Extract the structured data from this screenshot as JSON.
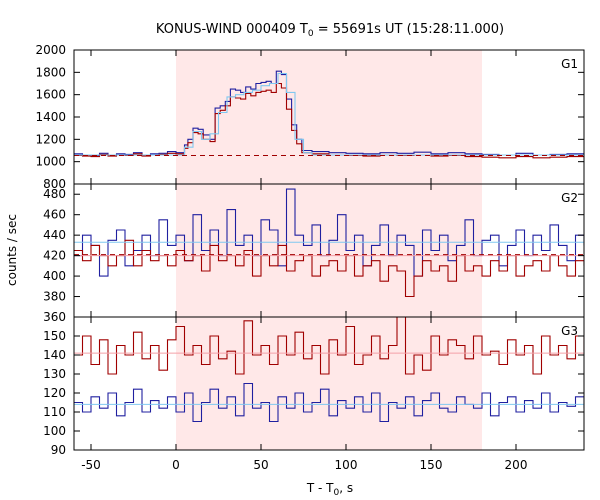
{
  "chart_data": {
    "type": "line",
    "title_main": "KONUS-WIND 000409 T",
    "title_sub": "0",
    "title_rest": " = 55691s UT (15:28:11.000)",
    "xlabel_main": "T - T",
    "xlabel_sub": "0",
    "xlabel_rest": ", s",
    "ylabel": "counts / sec",
    "xlim": [
      -60,
      240
    ],
    "x_ticks": [
      -50,
      0,
      50,
      100,
      150,
      200
    ],
    "shaded_interval": [
      0,
      180
    ],
    "colors": {
      "shade": "#ffe8e8",
      "dark_red": "#a00000",
      "blue": "#2020a0",
      "light_blue": "#80c8f0",
      "pink": "#f4a0a8"
    },
    "panels": [
      {
        "label": "G1",
        "ylim": [
          800,
          2000
        ],
        "y_ticks": [
          800,
          1000,
          1200,
          1400,
          1600,
          1800,
          2000
        ],
        "series": [
          {
            "color": "#2020a0",
            "style": "step",
            "x": [
              -60,
              -55,
              -50,
              -45,
              -40,
              -35,
              -30,
              -25,
              -20,
              -15,
              -10,
              -5,
              0,
              5,
              7,
              10,
              13,
              16,
              20,
              23,
              26,
              29,
              32,
              35,
              38,
              41,
              44,
              47,
              50,
              53,
              56,
              59,
              62,
              65,
              68,
              71,
              74,
              80,
              90,
              100,
              110,
              120,
              130,
              140,
              150,
              160,
              170,
              180,
              190,
              200,
              210,
              220,
              230,
              240
            ],
            "y": [
              1070,
              1060,
              1050,
              1075,
              1060,
              1070,
              1065,
              1080,
              1060,
              1070,
              1075,
              1090,
              1080,
              1150,
              1200,
              1300,
              1290,
              1240,
              1200,
              1480,
              1500,
              1540,
              1650,
              1640,
              1620,
              1670,
              1650,
              1700,
              1710,
              1720,
              1700,
              1810,
              1780,
              1560,
              1330,
              1200,
              1100,
              1090,
              1080,
              1075,
              1070,
              1080,
              1075,
              1085,
              1070,
              1080,
              1070,
              1065,
              1060,
              1075,
              1060,
              1065,
              1070,
              1065
            ]
          },
          {
            "color": "#a00000",
            "style": "step",
            "x": [
              -60,
              -55,
              -50,
              -45,
              -40,
              -35,
              -30,
              -25,
              -20,
              -15,
              -10,
              -5,
              0,
              5,
              7,
              10,
              13,
              16,
              20,
              23,
              26,
              29,
              32,
              35,
              38,
              41,
              44,
              47,
              50,
              53,
              56,
              59,
              62,
              65,
              68,
              71,
              74,
              80,
              90,
              100,
              110,
              120,
              130,
              140,
              150,
              160,
              170,
              180,
              190,
              200,
              210,
              220,
              230,
              240
            ],
            "y": [
              1055,
              1050,
              1045,
              1065,
              1050,
              1060,
              1055,
              1070,
              1050,
              1060,
              1065,
              1075,
              1070,
              1120,
              1170,
              1260,
              1250,
              1200,
              1180,
              1430,
              1460,
              1500,
              1580,
              1570,
              1560,
              1610,
              1590,
              1620,
              1630,
              1640,
              1620,
              1700,
              1660,
              1470,
              1280,
              1160,
              1080,
              1070,
              1060,
              1055,
              1050,
              1060,
              1055,
              1060,
              1050,
              1055,
              1045,
              1040,
              1035,
              1045,
              1035,
              1040,
              1045,
              1040
            ]
          },
          {
            "color": "#80c8f0",
            "style": "step",
            "x": [
              -60,
              0,
              5,
              10,
              15,
              20,
              25,
              30,
              35,
              40,
              45,
              50,
              55,
              60,
              65,
              70,
              75,
              80,
              240
            ],
            "y": [
              1060,
              1060,
              1130,
              1270,
              1200,
              1250,
              1440,
              1580,
              1600,
              1620,
              1640,
              1680,
              1700,
              1790,
              1620,
              1200,
              1080,
              1060,
              1060
            ]
          },
          {
            "color": "#a00000",
            "style": "dashed",
            "x": [
              -60,
              240
            ],
            "y": [
              1055,
              1055
            ]
          }
        ]
      },
      {
        "label": "G2",
        "ylim": [
          360,
          490
        ],
        "y_ticks": [
          360,
          380,
          400,
          420,
          440,
          460,
          480
        ],
        "series": [
          {
            "color": "#2020a0",
            "style": "step",
            "x": [
              -60,
              -55,
              -50,
              -45,
              -40,
              -35,
              -30,
              -25,
              -20,
              -15,
              -10,
              -5,
              0,
              5,
              10,
              15,
              20,
              25,
              30,
              35,
              40,
              45,
              50,
              55,
              60,
              65,
              70,
              75,
              80,
              85,
              90,
              95,
              100,
              105,
              110,
              115,
              120,
              125,
              130,
              135,
              140,
              145,
              150,
              155,
              160,
              165,
              170,
              175,
              180,
              185,
              190,
              195,
              200,
              205,
              210,
              215,
              220,
              225,
              230,
              235,
              240
            ],
            "y": [
              420,
              440,
              430,
              400,
              435,
              445,
              410,
              425,
              440,
              420,
              455,
              430,
              440,
              415,
              460,
              425,
              445,
              420,
              465,
              430,
              440,
              420,
              455,
              445,
              410,
              485,
              440,
              430,
              450,
              420,
              435,
              460,
              425,
              440,
              410,
              430,
              450,
              420,
              440,
              430,
              400,
              445,
              425,
              440,
              415,
              430,
              455,
              420,
              435,
              440,
              410,
              430,
              445,
              420,
              440,
              425,
              450,
              430,
              415,
              440,
              430
            ]
          },
          {
            "color": "#a00000",
            "style": "step",
            "x": [
              -60,
              -55,
              -50,
              -45,
              -40,
              -35,
              -30,
              -25,
              -20,
              -15,
              -10,
              -5,
              0,
              5,
              10,
              15,
              20,
              25,
              30,
              35,
              40,
              45,
              50,
              55,
              60,
              65,
              70,
              75,
              80,
              85,
              90,
              95,
              100,
              105,
              110,
              115,
              120,
              125,
              130,
              135,
              140,
              145,
              150,
              155,
              160,
              165,
              170,
              175,
              180,
              185,
              190,
              195,
              200,
              205,
              210,
              215,
              220,
              225,
              230,
              235,
              240
            ],
            "y": [
              425,
              415,
              430,
              420,
              410,
              420,
              435,
              410,
              425,
              415,
              420,
              410,
              425,
              415,
              420,
              405,
              430,
              415,
              420,
              410,
              425,
              400,
              420,
              410,
              430,
              405,
              415,
              420,
              400,
              410,
              415,
              405,
              420,
              400,
              410,
              415,
              395,
              410,
              405,
              380,
              400,
              415,
              405,
              410,
              395,
              420,
              405,
              410,
              400,
              415,
              405,
              420,
              400,
              410,
              415,
              405,
              420,
              410,
              400,
              415,
              410
            ]
          },
          {
            "color": "#80c8f0",
            "style": "flat",
            "x": [
              -60,
              240
            ],
            "y": [
              433,
              433
            ]
          },
          {
            "color": "#f4a0a8",
            "style": "flat",
            "x": [
              -60,
              240
            ],
            "y": [
              420,
              420
            ]
          },
          {
            "color": "#a00000",
            "style": "dashed",
            "x": [
              -60,
              240
            ],
            "y": [
              421,
              421
            ]
          }
        ]
      },
      {
        "label": "G3",
        "ylim": [
          90,
          160
        ],
        "y_ticks": [
          90,
          100,
          110,
          120,
          130,
          140,
          150
        ],
        "series": [
          {
            "color": "#a00000",
            "style": "step",
            "x": [
              -60,
              -55,
              -50,
              -45,
              -40,
              -35,
              -30,
              -25,
              -20,
              -15,
              -10,
              -5,
              0,
              5,
              10,
              15,
              20,
              25,
              30,
              35,
              40,
              45,
              50,
              55,
              60,
              65,
              70,
              75,
              80,
              85,
              90,
              95,
              100,
              105,
              110,
              115,
              120,
              125,
              130,
              135,
              140,
              145,
              150,
              155,
              160,
              165,
              170,
              175,
              180,
              185,
              190,
              195,
              200,
              205,
              210,
              215,
              220,
              225,
              230,
              235,
              240
            ],
            "y": [
              140,
              150,
              135,
              148,
              130,
              145,
              140,
              152,
              138,
              145,
              132,
              148,
              155,
              140,
              145,
              135,
              150,
              138,
              142,
              130,
              158,
              140,
              145,
              135,
              150,
              140,
              152,
              138,
              145,
              130,
              148,
              140,
              155,
              135,
              140,
              150,
              138,
              145,
              160,
              130,
              140,
              132,
              150,
              140,
              148,
              145,
              138,
              150,
              140,
              142,
              135,
              148,
              140,
              145,
              130,
              150,
              140,
              145,
              138,
              150,
              142
            ]
          },
          {
            "color": "#2020a0",
            "style": "step",
            "x": [
              -60,
              -55,
              -50,
              -45,
              -40,
              -35,
              -30,
              -25,
              -20,
              -15,
              -10,
              -5,
              0,
              5,
              10,
              15,
              20,
              25,
              30,
              35,
              40,
              45,
              50,
              55,
              60,
              65,
              70,
              75,
              80,
              85,
              90,
              95,
              100,
              105,
              110,
              115,
              120,
              125,
              130,
              135,
              140,
              145,
              150,
              155,
              160,
              165,
              170,
              175,
              180,
              185,
              190,
              195,
              200,
              205,
              210,
              215,
              220,
              225,
              230,
              235,
              240
            ],
            "y": [
              115,
              110,
              118,
              112,
              120,
              108,
              115,
              122,
              110,
              116,
              112,
              118,
              110,
              120,
              105,
              115,
              122,
              112,
              118,
              108,
              125,
              112,
              115,
              105,
              118,
              112,
              120,
              110,
              115,
              122,
              108,
              116,
              112,
              118,
              110,
              120,
              105,
              115,
              112,
              118,
              108,
              116,
              120,
              112,
              110,
              118,
              114,
              112,
              120,
              108,
              115,
              118,
              110,
              116,
              112,
              120,
              110,
              115,
              113,
              118,
              112
            ]
          },
          {
            "color": "#f4a0a8",
            "style": "flat",
            "x": [
              -60,
              240
            ],
            "y": [
              141,
              141
            ]
          },
          {
            "color": "#80c8f0",
            "style": "flat",
            "x": [
              -60,
              240
            ],
            "y": [
              114,
              114
            ]
          }
        ]
      }
    ]
  }
}
